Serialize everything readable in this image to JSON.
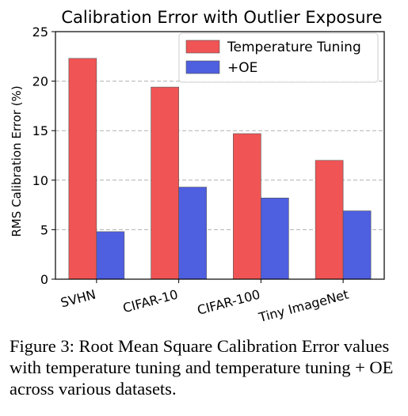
{
  "chart_data": {
    "type": "bar",
    "title": "Calibration Error with Outlier Exposure",
    "ylabel": "RMS Calibration Error (%)",
    "xlabel": "",
    "categories": [
      "SVHN",
      "CIFAR-10",
      "CIFAR-100",
      "Tiny ImageNet"
    ],
    "series": [
      {
        "name": "Temperature Tuning",
        "values": [
          22.3,
          19.4,
          14.7,
          12.0
        ],
        "color": "#f05454"
      },
      {
        "name": "+OE",
        "values": [
          4.8,
          9.3,
          8.2,
          6.9
        ],
        "color": "#4e5fe0"
      }
    ],
    "ylim": [
      0,
      25
    ],
    "yticks": [
      0,
      5,
      10,
      15,
      20,
      25
    ],
    "grid": "y-dashed",
    "legend": "top-right"
  },
  "caption": "Figure 3: Root Mean Square Calibration Error values with temperature tuning and temperature tuning + OE across various datasets."
}
